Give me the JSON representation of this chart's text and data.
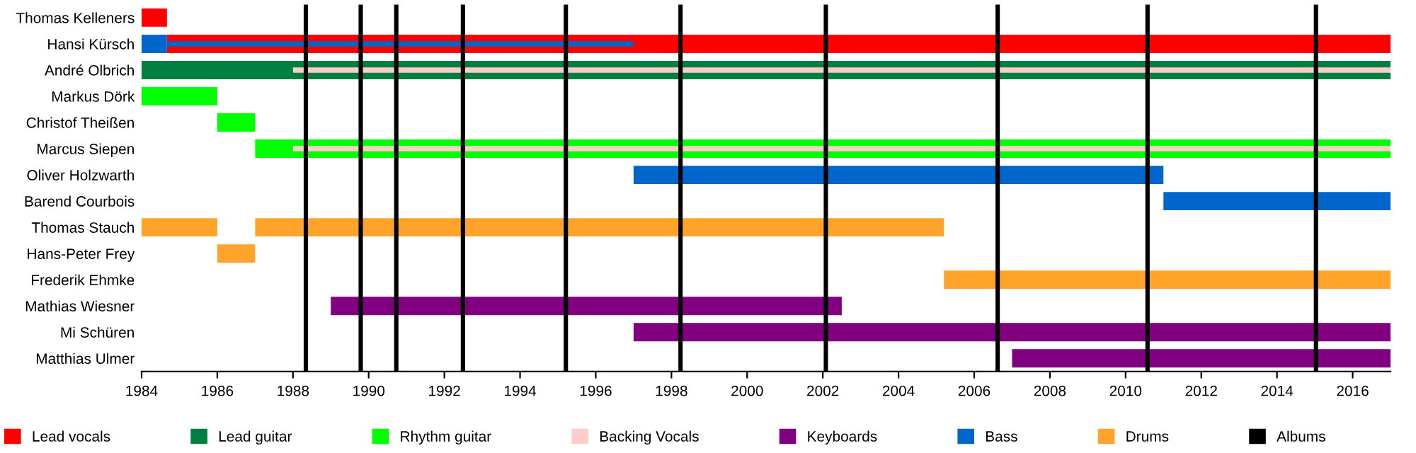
{
  "chart_data": {
    "type": "bar",
    "orientation": "horizontal",
    "categories": [
      "Thomas Kelleners",
      "Hansi Kürsch",
      "André Olbrich",
      "Markus Dörk",
      "Christof Theißen",
      "Marcus Siepen",
      "Oliver Holzwarth",
      "Barend Courbois",
      "Thomas Stauch",
      "Hans-Peter Frey",
      "Frederik Ehmke",
      "Mathias Wiesner",
      "Mi Schüren",
      "Matthias Ulmer"
    ],
    "series": [
      {
        "name": "Lead vocals",
        "color": "#ff0000",
        "base": [
          1984,
          1984.67,
          null,
          null,
          null,
          null,
          null,
          null,
          null,
          null,
          null,
          null,
          null,
          null
        ],
        "values": [
          0.67,
          32.33,
          null,
          null,
          null,
          null,
          null,
          null,
          null,
          null,
          null,
          null,
          null,
          null
        ]
      },
      {
        "name": "Lead guitar",
        "color": "#008040",
        "base": [
          null,
          null,
          1984,
          null,
          null,
          null,
          null,
          null,
          null,
          null,
          null,
          null,
          null,
          null
        ],
        "values": [
          null,
          null,
          33,
          null,
          null,
          null,
          null,
          null,
          null,
          null,
          null,
          null,
          null,
          null
        ]
      },
      {
        "name": "Rhythm guitar",
        "color": "#00ff00",
        "base": [
          null,
          null,
          null,
          1984,
          1986,
          1987,
          null,
          null,
          null,
          null,
          null,
          null,
          null,
          null
        ],
        "values": [
          null,
          null,
          null,
          2,
          1,
          30,
          null,
          null,
          null,
          null,
          null,
          null,
          null,
          null
        ]
      },
      {
        "name": "Backing Vocals",
        "color": "#ffcccc",
        "base": [
          null,
          null,
          1988,
          null,
          null,
          1988,
          null,
          null,
          null,
          null,
          null,
          null,
          null,
          null
        ],
        "values": [
          null,
          null,
          29,
          null,
          null,
          29,
          null,
          null,
          null,
          null,
          null,
          null,
          null,
          null
        ]
      },
      {
        "name": "Keyboards",
        "color": "#800080",
        "base": [
          null,
          null,
          null,
          null,
          null,
          null,
          null,
          null,
          null,
          null,
          null,
          1989,
          1997,
          2007
        ],
        "values": [
          null,
          null,
          null,
          null,
          null,
          null,
          null,
          null,
          null,
          null,
          null,
          13.5,
          20,
          10
        ]
      },
      {
        "name": "Bass",
        "color": "#0066cc",
        "base": [
          null,
          1984,
          null,
          null,
          null,
          null,
          1997,
          2011,
          null,
          null,
          null,
          null,
          null,
          null
        ],
        "values": [
          null,
          0.67,
          null,
          null,
          null,
          null,
          14,
          6,
          null,
          null,
          null,
          null,
          null,
          null
        ]
      },
      {
        "name": "Drums",
        "color": "#ffa32a",
        "base": [
          null,
          null,
          null,
          null,
          null,
          null,
          null,
          null,
          1984,
          1986,
          2005.2,
          null,
          null,
          null
        ],
        "values": [
          null,
          null,
          null,
          null,
          null,
          null,
          null,
          null,
          2,
          1,
          11.8,
          null,
          null,
          null
        ]
      },
      {
        "color": "#0066cc",
        "base": [
          null,
          1984.67,
          null,
          null,
          null,
          null,
          null,
          null,
          null,
          null,
          null,
          null,
          null,
          null
        ],
        "values": [
          null,
          12.33,
          null,
          null,
          null,
          null,
          null,
          null,
          null,
          null,
          null,
          null,
          null,
          null
        ]
      },
      {
        "color": "#ffa32a",
        "base": [
          null,
          null,
          null,
          null,
          null,
          null,
          null,
          null,
          1987,
          null,
          null,
          null,
          null,
          null
        ],
        "values": [
          null,
          null,
          null,
          null,
          null,
          null,
          null,
          null,
          18.2,
          null,
          null,
          null,
          null,
          null
        ]
      }
    ],
    "ref_lines": [
      {
        "axis": "x",
        "value": 1988.34,
        "label": "Albums",
        "color": "#000000"
      },
      {
        "axis": "x",
        "value": 1989.79,
        "color": "#000000"
      },
      {
        "axis": "x",
        "value": 1990.73,
        "color": "#000000"
      },
      {
        "axis": "x",
        "value": 1992.49,
        "color": "#000000"
      },
      {
        "axis": "x",
        "value": 1995.21,
        "color": "#000000"
      },
      {
        "axis": "x",
        "value": 1998.24,
        "color": "#000000"
      },
      {
        "axis": "x",
        "value": 2002.08,
        "color": "#000000"
      },
      {
        "axis": "x",
        "value": 2006.62,
        "color": "#000000"
      },
      {
        "axis": "x",
        "value": 2010.58,
        "color": "#000000"
      },
      {
        "axis": "x",
        "value": 2015.03,
        "color": "#000000"
      }
    ],
    "xlim": [
      1984,
      2017
    ],
    "xticks": [
      1984,
      1986,
      1988,
      1990,
      1992,
      1994,
      1996,
      1998,
      2000,
      2002,
      2004,
      2006,
      2008,
      2010,
      2012,
      2014,
      2016
    ],
    "grid": false,
    "legend": "bottom"
  }
}
